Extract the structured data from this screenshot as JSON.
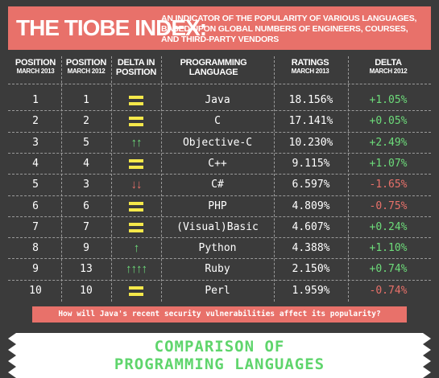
{
  "banner": {
    "title": "THE TIOBE INDEX:",
    "subtitle": "AN INDICATOR OF THE POPULARITY OF VARIOUS LANGUAGES, BASED UPON GLOBAL NUMBERS OF ENGINEERS, COURSES, AND THIRD-PARTY VENDORS"
  },
  "headers": [
    {
      "main": "POSITION",
      "sub": "MARCH 2013"
    },
    {
      "main": "POSITION",
      "sub": "MARCH 2012"
    },
    {
      "main": "DELTA IN POSITION",
      "sub": ""
    },
    {
      "main": "PROGRAMMING LANGUAGE",
      "sub": ""
    },
    {
      "main": "RATINGS",
      "sub": "MARCH 2013"
    },
    {
      "main": "DELTA",
      "sub": "MARCH 2012"
    }
  ],
  "rows": [
    {
      "pos2013": "1",
      "pos2012": "1",
      "change": "same",
      "arrows": "",
      "language": "Java",
      "rating": "18.156%",
      "delta": "+1.05%",
      "delta_sign": "pos"
    },
    {
      "pos2013": "2",
      "pos2012": "2",
      "change": "same",
      "arrows": "",
      "language": "C",
      "rating": "17.141%",
      "delta": "+0.05%",
      "delta_sign": "pos"
    },
    {
      "pos2013": "3",
      "pos2012": "5",
      "change": "up",
      "arrows": "↑↑",
      "language": "Objective-C",
      "rating": "10.230%",
      "delta": "+2.49%",
      "delta_sign": "pos"
    },
    {
      "pos2013": "4",
      "pos2012": "4",
      "change": "same",
      "arrows": "",
      "language": "C++",
      "rating": "9.115%",
      "delta": "+1.07%",
      "delta_sign": "pos"
    },
    {
      "pos2013": "5",
      "pos2012": "3",
      "change": "down",
      "arrows": "↓↓",
      "language": "C#",
      "rating": "6.597%",
      "delta": "-1.65%",
      "delta_sign": "neg"
    },
    {
      "pos2013": "6",
      "pos2012": "6",
      "change": "same",
      "arrows": "",
      "language": "PHP",
      "rating": "4.809%",
      "delta": "-0.75%",
      "delta_sign": "neg"
    },
    {
      "pos2013": "7",
      "pos2012": "7",
      "change": "same",
      "arrows": "",
      "language": "(Visual)Basic",
      "rating": "4.607%",
      "delta": "+0.24%",
      "delta_sign": "pos"
    },
    {
      "pos2013": "8",
      "pos2012": "9",
      "change": "up",
      "arrows": "↑",
      "language": "Python",
      "rating": "4.388%",
      "delta": "+1.10%",
      "delta_sign": "pos"
    },
    {
      "pos2013": "9",
      "pos2012": "13",
      "change": "up",
      "arrows": "↑↑↑↑",
      "language": "Ruby",
      "rating": "2.150%",
      "delta": "+0.74%",
      "delta_sign": "pos"
    },
    {
      "pos2013": "10",
      "pos2012": "10",
      "change": "same",
      "arrows": "",
      "language": "Perl",
      "rating": "1.959%",
      "delta": "-0.74%",
      "delta_sign": "neg"
    }
  ],
  "question": "How will Java's recent security vulnerabilities affect its popularity?",
  "bottom": {
    "line1": "COMPARISON OF",
    "line2": "PROGRAMMING LANGUAGES"
  },
  "colors": {
    "accent": "#e8716a",
    "positive": "#6ddc7a",
    "equal": "#f5e84a",
    "background": "#3b3b3b"
  }
}
